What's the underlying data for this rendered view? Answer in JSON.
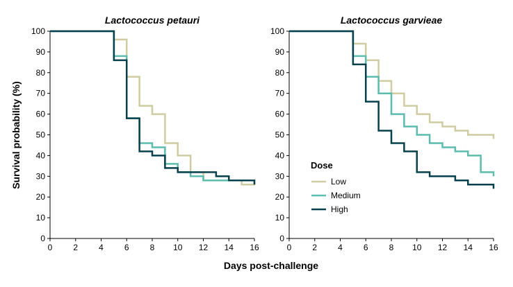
{
  "figure": {
    "xlabel": "Days post-challenge",
    "ylabel": "Survival probability (%)"
  },
  "legend": {
    "title": "Dose",
    "entries": [
      {
        "label": "Low",
        "color": "#cfcca2"
      },
      {
        "label": "Medium",
        "color": "#5cbcad"
      },
      {
        "label": "High",
        "color": "#07414d"
      }
    ]
  },
  "chart_data": [
    {
      "type": "line",
      "step": true,
      "title": "Lactococcus petauri",
      "xlim": [
        0,
        16
      ],
      "ylim": [
        0,
        100
      ],
      "xticks": [
        0,
        2,
        4,
        6,
        8,
        10,
        12,
        14,
        16
      ],
      "yticks": [
        0,
        10,
        20,
        30,
        40,
        50,
        60,
        70,
        80,
        90,
        100
      ],
      "series": [
        {
          "name": "Low",
          "color": "#cfcca2",
          "x": [
            0,
            5,
            6,
            7,
            8,
            9,
            10,
            11,
            12,
            15,
            16
          ],
          "y": [
            100,
            96,
            78,
            64,
            60,
            46,
            40,
            32,
            28,
            26,
            28
          ]
        },
        {
          "name": "Medium",
          "color": "#5cbcad",
          "x": [
            0,
            5,
            6,
            7,
            8,
            9,
            10,
            11,
            12,
            16
          ],
          "y": [
            100,
            88,
            58,
            46,
            44,
            36,
            32,
            30,
            28,
            28
          ]
        },
        {
          "name": "High",
          "color": "#07414d",
          "x": [
            0,
            5,
            6,
            7,
            8,
            9,
            10,
            13,
            14,
            16
          ],
          "y": [
            100,
            86,
            58,
            42,
            40,
            34,
            32,
            30,
            28,
            26
          ]
        }
      ]
    },
    {
      "type": "line",
      "step": true,
      "title": "Lactococcus garvieae",
      "xlim": [
        0,
        16
      ],
      "ylim": [
        0,
        100
      ],
      "xticks": [
        0,
        2,
        4,
        6,
        8,
        10,
        12,
        14,
        16
      ],
      "yticks": [
        0,
        10,
        20,
        30,
        40,
        50,
        60,
        70,
        80,
        90,
        100
      ],
      "series": [
        {
          "name": "Low",
          "color": "#cfcca2",
          "x": [
            0,
            5,
            6,
            7,
            8,
            9,
            10,
            11,
            12,
            13,
            14,
            16
          ],
          "y": [
            100,
            94,
            86,
            76,
            70,
            64,
            60,
            56,
            54,
            52,
            50,
            48
          ]
        },
        {
          "name": "Medium",
          "color": "#5cbcad",
          "x": [
            0,
            5,
            6,
            7,
            8,
            9,
            10,
            11,
            12,
            13,
            14,
            15,
            16
          ],
          "y": [
            100,
            88,
            78,
            70,
            60,
            54,
            50,
            46,
            44,
            42,
            40,
            32,
            30
          ]
        },
        {
          "name": "High",
          "color": "#07414d",
          "x": [
            0,
            5,
            6,
            7,
            8,
            9,
            10,
            11,
            13,
            14,
            16
          ],
          "y": [
            100,
            84,
            66,
            52,
            46,
            42,
            32,
            30,
            28,
            26,
            24
          ]
        }
      ]
    }
  ]
}
